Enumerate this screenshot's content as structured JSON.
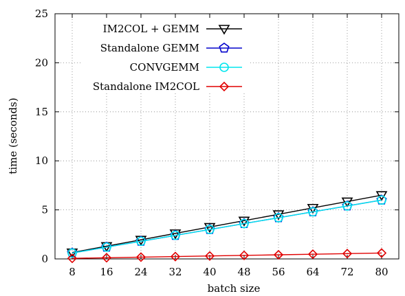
{
  "chart_data": {
    "type": "line",
    "xlabel": "batch size",
    "ylabel": "time (seconds)",
    "ylim": [
      0,
      25
    ],
    "yticks": [
      0,
      5,
      10,
      15,
      20,
      25
    ],
    "x": [
      8,
      16,
      24,
      32,
      40,
      48,
      56,
      64,
      72,
      80
    ],
    "grid": true,
    "legend_position": "top-right",
    "series": [
      {
        "name": "IM2COL + GEMM",
        "color": "#000000",
        "marker": "triangle-down",
        "values": [
          0.65,
          1.3,
          1.95,
          2.6,
          3.25,
          3.9,
          4.55,
          5.2,
          5.85,
          6.5
        ]
      },
      {
        "name": "Standalone GEMM",
        "color": "#0000cc",
        "marker": "pentagon",
        "values": [
          0.6,
          1.2,
          1.8,
          2.4,
          3.0,
          3.6,
          4.2,
          4.8,
          5.4,
          6.0
        ]
      },
      {
        "name": "CONVGEMM",
        "color": "#00e5ee",
        "marker": "circle",
        "values": [
          0.6,
          1.2,
          1.8,
          2.4,
          3.0,
          3.6,
          4.2,
          4.8,
          5.4,
          6.0
        ]
      },
      {
        "name": "Standalone IM2COL",
        "color": "#e00000",
        "marker": "diamond",
        "values": [
          0.06,
          0.12,
          0.18,
          0.24,
          0.3,
          0.36,
          0.42,
          0.48,
          0.54,
          0.6
        ]
      }
    ]
  }
}
